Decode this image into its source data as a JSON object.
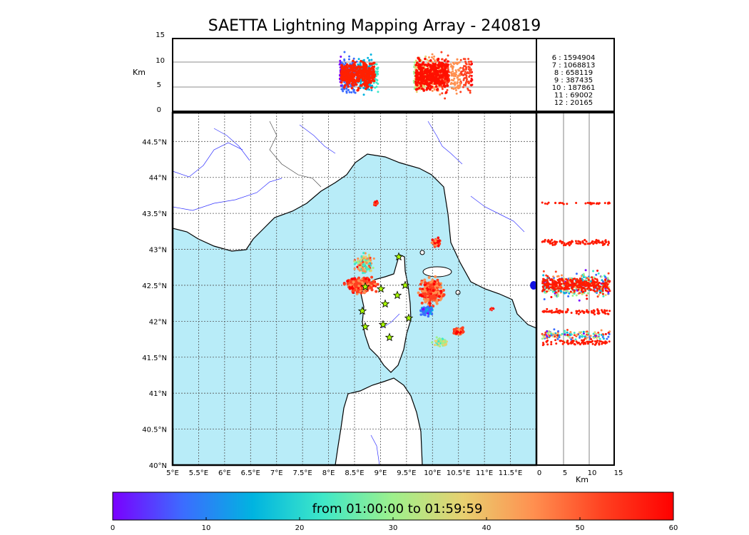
{
  "title": "SAETTA Lightning Mapping Array - 240819",
  "colors": {
    "sea": "#b8ecf8",
    "land": "#ffffff",
    "river": "#3333ff",
    "border": "#000000"
  },
  "alt_panel": {
    "ylabel": "Km",
    "yticks": [
      "0",
      "5",
      "10",
      "15"
    ],
    "counts": [
      {
        "label": "6  :  1594904",
        "color": "#000000"
      },
      {
        "label": "7  :  1068813",
        "color": "#ff0000"
      },
      {
        "label": "8  :   658119",
        "color": "#000000"
      },
      {
        "label": "9  :   387435",
        "color": "#000000"
      },
      {
        "label": "10  :   187861",
        "color": "#000000"
      },
      {
        "label": "11  :    69002",
        "color": "#000000"
      },
      {
        "label": "12  :    20165",
        "color": "#000000"
      }
    ]
  },
  "map": {
    "lat_labels": [
      "40°N",
      "40.5°N",
      "41°N",
      "41.5°N",
      "42°N",
      "42.5°N",
      "43°N",
      "43.5°N",
      "44°N",
      "44.5°N"
    ],
    "lon_labels": [
      "5°E",
      "5.5°E",
      "6°E",
      "6.5°E",
      "7°E",
      "7.5°E",
      "8°E",
      "8.5°E",
      "9°E",
      "9.5°E",
      "10°E",
      "10.5°E",
      "11°E",
      "11.5°E"
    ],
    "stations": 11
  },
  "side_panel": {
    "xticks": [
      "0",
      "5",
      "10",
      "15"
    ],
    "xlabel": "Km"
  },
  "colorbar": {
    "label": "from 01:00:00 to 01:59:59",
    "ticks": [
      "0",
      "10",
      "20",
      "30",
      "40",
      "50",
      "60"
    ],
    "stops": [
      "#7a00ff",
      "#3c6cff",
      "#00b4e0",
      "#3ee8c8",
      "#9ef08c",
      "#e8d070",
      "#ff9050",
      "#ff4020",
      "#ff0000"
    ]
  }
}
